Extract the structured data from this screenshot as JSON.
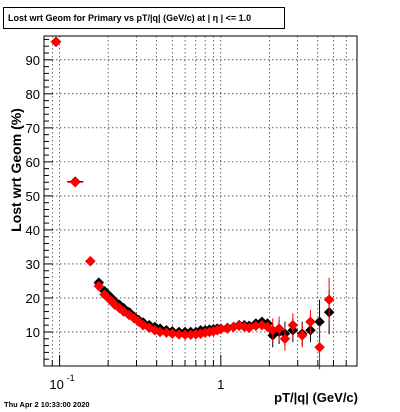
{
  "chart_data": {
    "type": "scatter",
    "title": "Lost wrt Geom for Primary vs pT/|q| (GeV/c) at |  η | <= 1.0",
    "xlabel": "pT/|q| (GeV/c)",
    "ylabel": "Lost wrt Geom (%)",
    "x_scale": "log",
    "xlim": [
      0.08,
      7.0
    ],
    "ylim": [
      0,
      97
    ],
    "grid": true,
    "x_tick_labels": [
      "10^{-1}",
      "1"
    ],
    "y_tick_labels": [
      "10",
      "20",
      "30",
      "40",
      "50",
      "60",
      "70",
      "80",
      "90"
    ],
    "series": [
      {
        "color": "#000000",
        "marker": "diamond",
        "x": [
          0.095,
          0.125,
          0.155,
          0.175,
          0.19,
          0.205,
          0.22,
          0.235,
          0.25,
          0.27,
          0.29,
          0.31,
          0.33,
          0.36,
          0.39,
          0.42,
          0.46,
          0.5,
          0.55,
          0.6,
          0.65,
          0.7,
          0.75,
          0.8,
          0.85,
          0.9,
          0.95,
          1.0,
          1.1,
          1.2,
          1.3,
          1.4,
          1.5,
          1.65,
          1.8,
          1.95,
          2.1,
          2.3,
          2.5,
          2.8,
          3.2,
          3.6,
          4.1,
          4.7
        ],
        "y": [
          95.3,
          54.2,
          30.8,
          24.5,
          22.0,
          20.5,
          19.0,
          18.0,
          17.0,
          15.8,
          14.5,
          13.5,
          12.8,
          12.0,
          11.5,
          11.0,
          10.5,
          10.2,
          10.0,
          10.0,
          10.0,
          10.0,
          10.5,
          10.5,
          10.7,
          10.8,
          11.0,
          11.0,
          11.2,
          11.5,
          12.0,
          12.0,
          11.8,
          12.5,
          13.0,
          12.5,
          9.0,
          10.0,
          9.5,
          10.5,
          9.5,
          10.5,
          13.0,
          15.8
        ]
      },
      {
        "color": "#ff0000",
        "marker": "diamond",
        "x": [
          0.095,
          0.125,
          0.155,
          0.175,
          0.19,
          0.205,
          0.22,
          0.235,
          0.25,
          0.27,
          0.29,
          0.31,
          0.33,
          0.36,
          0.39,
          0.42,
          0.46,
          0.5,
          0.55,
          0.6,
          0.65,
          0.7,
          0.75,
          0.8,
          0.85,
          0.9,
          0.95,
          1.0,
          1.1,
          1.2,
          1.3,
          1.4,
          1.5,
          1.65,
          1.8,
          1.95,
          2.1,
          2.3,
          2.5,
          2.8,
          3.2,
          3.6,
          4.1,
          4.7
        ],
        "y": [
          95.3,
          54.0,
          30.8,
          23.5,
          21.0,
          19.5,
          18.0,
          17.0,
          16.0,
          15.0,
          14.0,
          13.0,
          12.0,
          11.2,
          10.5,
          10.0,
          9.8,
          9.5,
          9.3,
          9.2,
          9.2,
          9.3,
          9.5,
          9.8,
          10.0,
          10.2,
          10.5,
          10.8,
          11.0,
          11.5,
          11.8,
          11.5,
          11.2,
          11.8,
          12.0,
          11.5,
          10.5,
          11.0,
          8.0,
          12.0,
          9.0,
          13.0,
          5.5,
          19.5
        ]
      }
    ]
  },
  "timestamp": "Thu Apr  2 10:33:00 2020"
}
